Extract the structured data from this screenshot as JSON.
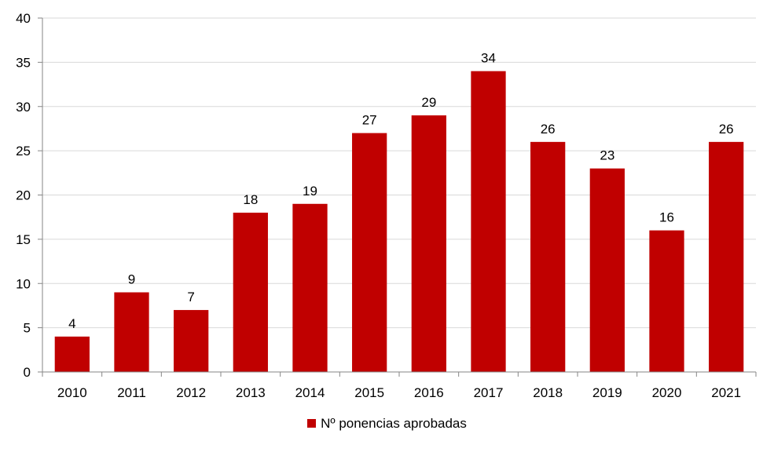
{
  "chart_data": {
    "type": "bar",
    "categories": [
      "2010",
      "2011",
      "2012",
      "2013",
      "2014",
      "2015",
      "2016",
      "2017",
      "2018",
      "2019",
      "2020",
      "2021"
    ],
    "series": [
      {
        "name": "Nº ponencias aprobadas",
        "values": [
          4,
          9,
          7,
          18,
          19,
          27,
          29,
          34,
          26,
          23,
          16,
          26
        ]
      }
    ],
    "ylim": [
      0,
      40
    ],
    "yticks": [
      0,
      5,
      10,
      15,
      20,
      25,
      30,
      35,
      40
    ],
    "grid": true,
    "data_labels": true,
    "legend_position": "bottom",
    "bar_color": "#c00000",
    "grid_color": "#d9d9d9",
    "axis_color": "#868686"
  }
}
